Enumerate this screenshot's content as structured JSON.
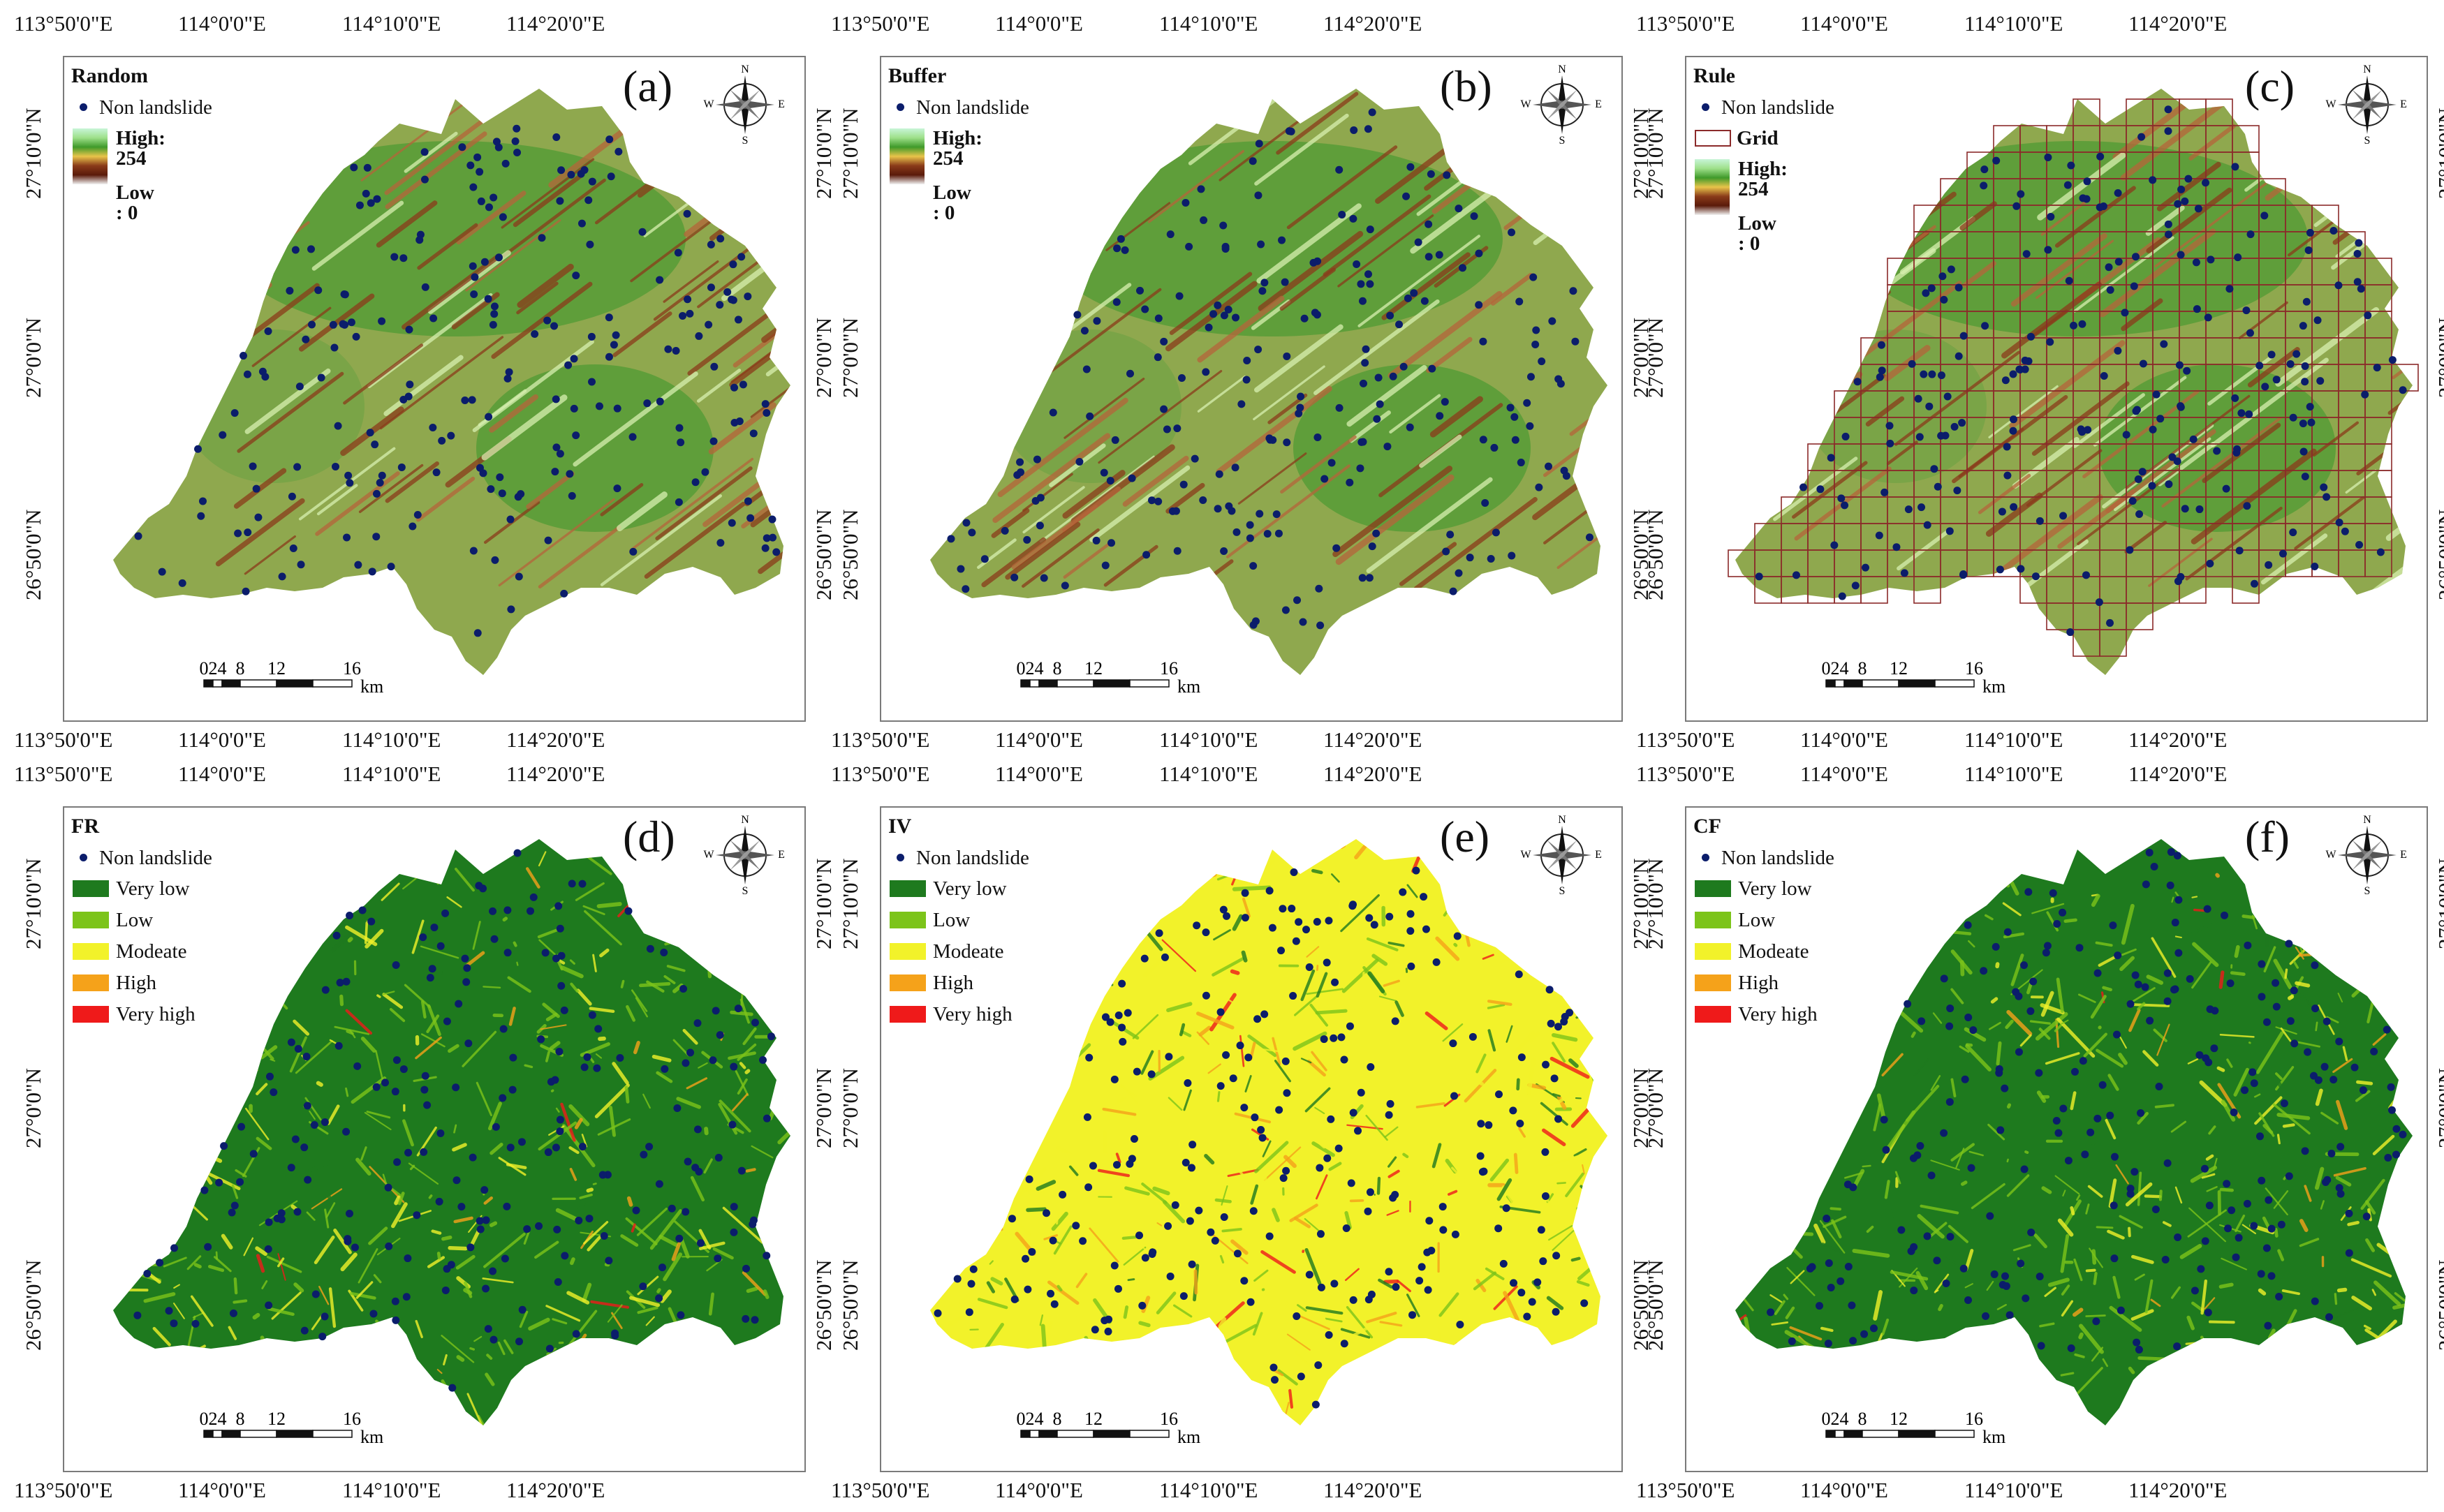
{
  "lon_labels": [
    "113°50'0\"E",
    "114°0'0\"E",
    "114°10'0\"E",
    "114°20'0\"E"
  ],
  "lat_labels": [
    "27°10'0\"N",
    "27°0'0\"N",
    "26°50'0\"N"
  ],
  "compass": {
    "n": "N",
    "s": "S",
    "e": "E",
    "w": "W"
  },
  "scale": {
    "ticks": [
      "0",
      "2",
      "4",
      "8",
      "12",
      "16"
    ],
    "unit": "km"
  },
  "legend_common": {
    "point": "Non landslide",
    "high": "High: 254",
    "low": "Low : 0",
    "grid": "Grid",
    "classes": [
      "Very low",
      "Low",
      "Modeate",
      "High",
      "Very high"
    ]
  },
  "colors": {
    "point": "#0b1d6b",
    "classes": [
      "#1e7a1e",
      "#7cc41a",
      "#f2f22a",
      "#f5a21a",
      "#ef1a1a"
    ],
    "grid": "#8b2a2a"
  },
  "panels": [
    {
      "title": "Random",
      "label": "(a)",
      "type": "sampling"
    },
    {
      "title": "Buffer",
      "label": "(b)",
      "type": "sampling"
    },
    {
      "title": "Rule",
      "label": "(c)",
      "type": "sampling_grid"
    },
    {
      "title": "FR",
      "label": "(d)",
      "type": "susceptibility"
    },
    {
      "title": "IV",
      "label": "(e)",
      "type": "susceptibility"
    },
    {
      "title": "CF",
      "label": "(f)",
      "type": "susceptibility"
    }
  ]
}
